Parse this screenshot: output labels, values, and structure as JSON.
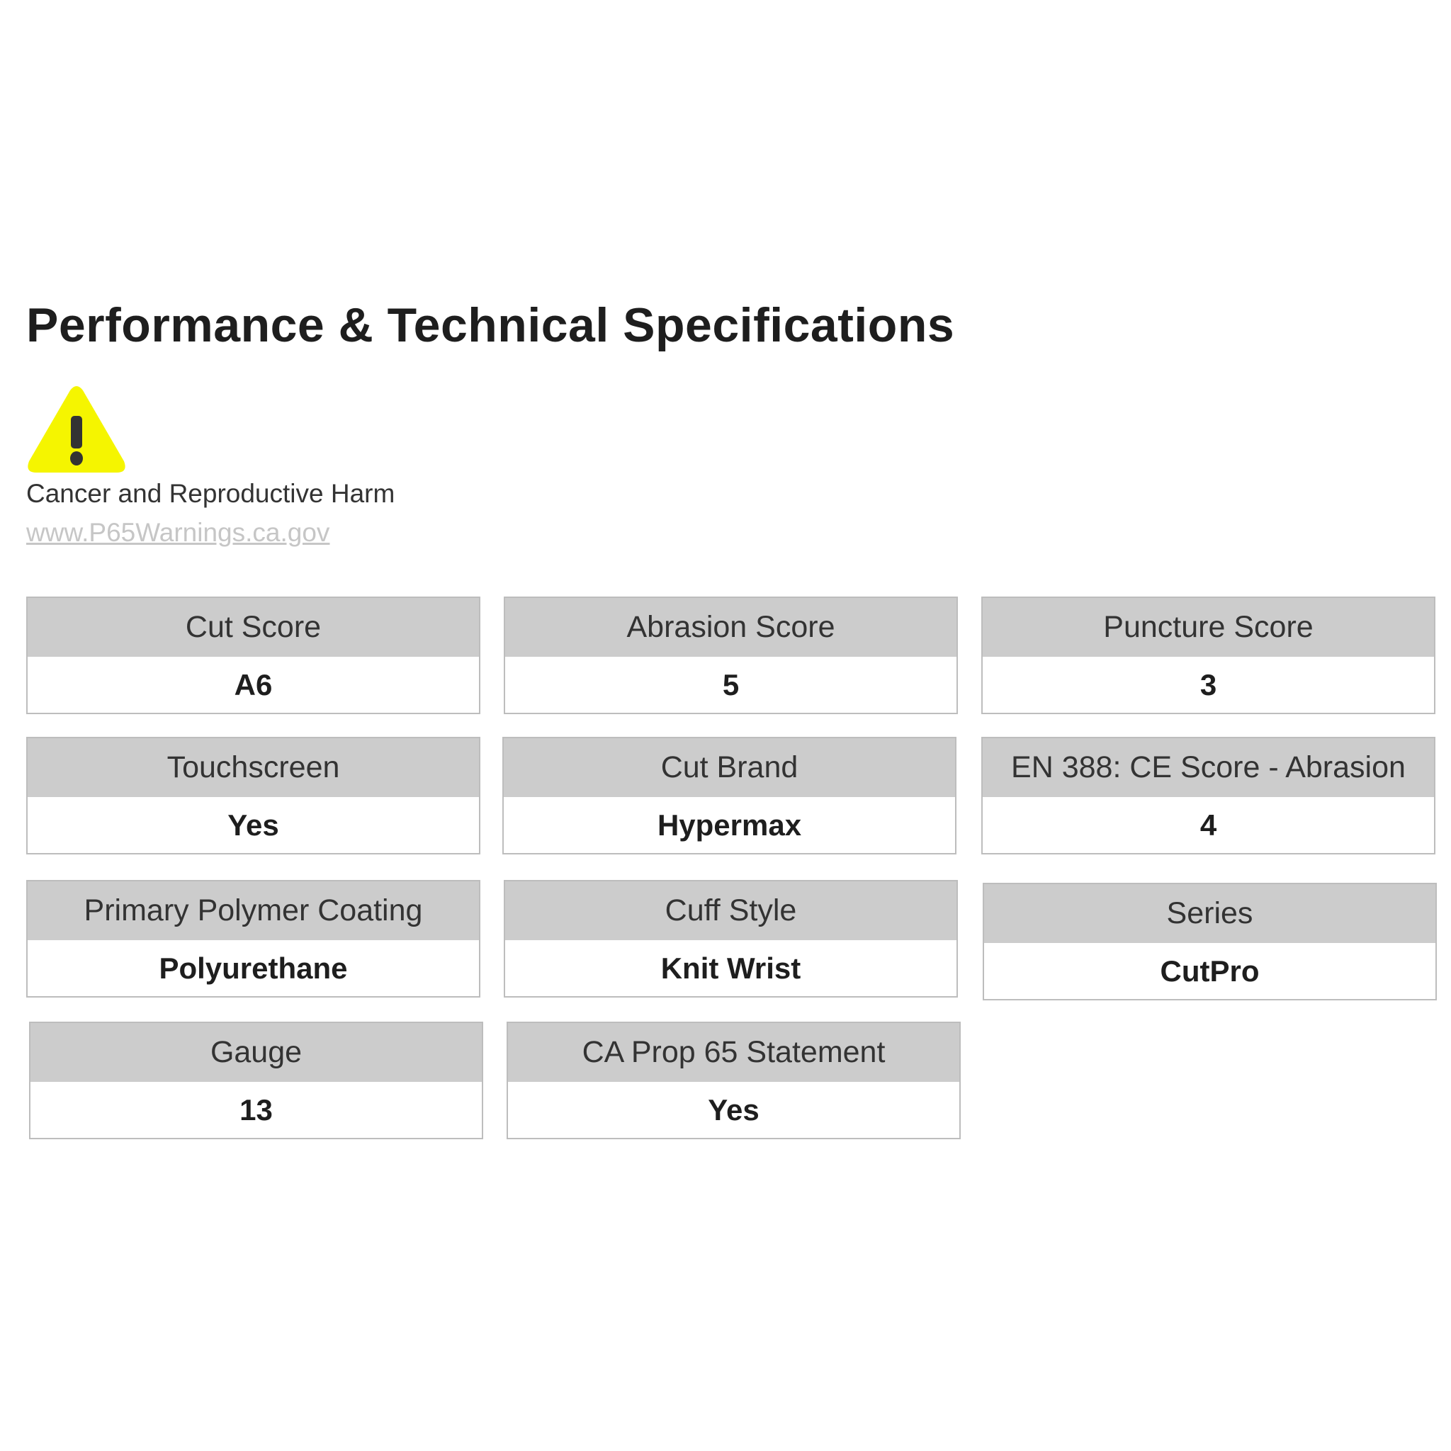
{
  "title": "Performance & Technical Specifications",
  "warning": {
    "icon": "warning-triangle-icon",
    "icon_color": "#f5f500",
    "text": "Cancer and Reproductive Harm",
    "link": "www.P65Warnings.ca.gov"
  },
  "specs": [
    {
      "label": "Cut Score",
      "value": "A6"
    },
    {
      "label": "Abrasion Score",
      "value": "5"
    },
    {
      "label": "Puncture Score",
      "value": "3"
    },
    {
      "label": "Touchscreen",
      "value": "Yes"
    },
    {
      "label": "Cut Brand",
      "value": "Hypermax"
    },
    {
      "label": "EN 388: CE Score - Abrasion",
      "value": "4"
    },
    {
      "label": "Primary Polymer Coating",
      "value": "Polyurethane"
    },
    {
      "label": "Cuff Style",
      "value": "Knit Wrist"
    },
    {
      "label": "Series",
      "value": "CutPro"
    },
    {
      "label": "Gauge",
      "value": "13"
    },
    {
      "label": "CA Prop 65 Statement",
      "value": "Yes"
    }
  ]
}
